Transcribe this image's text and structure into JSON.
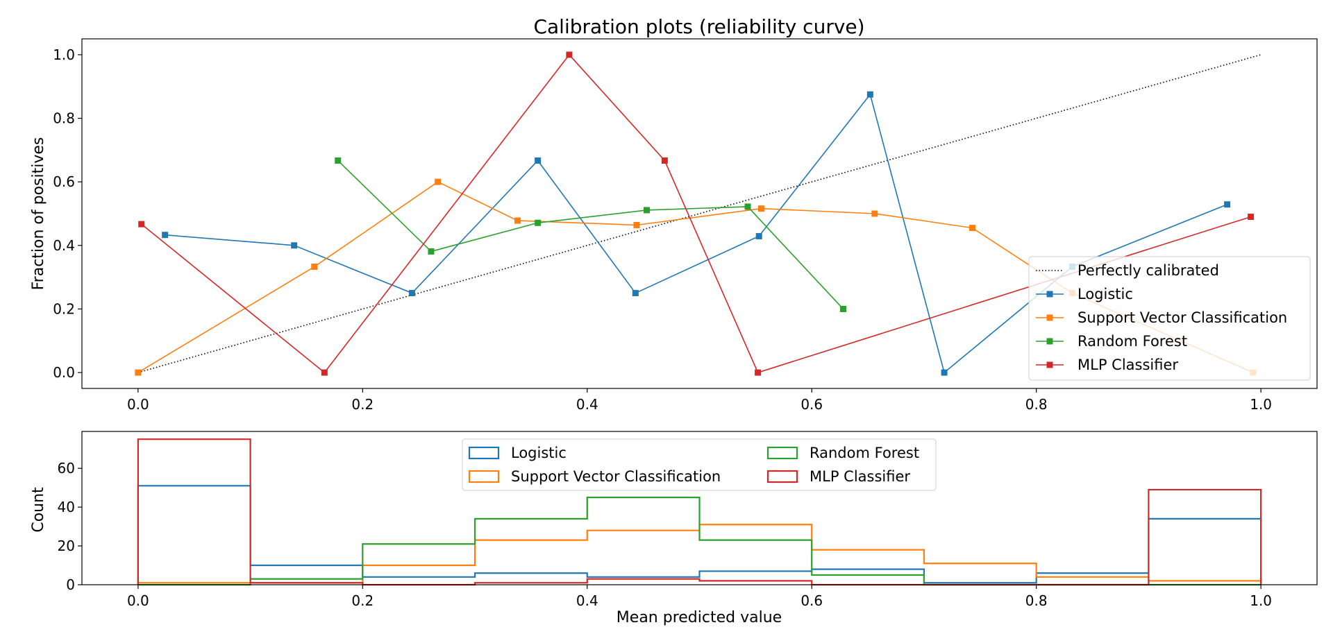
{
  "chart_data": [
    {
      "type": "line",
      "title": "Calibration plots  (reliability curve)",
      "xlabel": "",
      "ylabel": "Fraction of positives",
      "xlim": [
        -0.05,
        1.05
      ],
      "ylim": [
        -0.05,
        1.05
      ],
      "xticks": [
        0.0,
        0.2,
        0.4,
        0.6,
        0.8,
        1.0
      ],
      "xtick_labels": [
        "0.0",
        "0.2",
        "0.4",
        "0.6",
        "0.8",
        "1.0"
      ],
      "yticks": [
        0.0,
        0.2,
        0.4,
        0.6,
        0.8,
        1.0
      ],
      "ytick_labels": [
        "0.0",
        "0.2",
        "0.4",
        "0.6",
        "0.8",
        "1.0"
      ],
      "grid": false,
      "legend": "lower-right",
      "reference": {
        "name": "Perfectly calibrated",
        "x": [
          0,
          1
        ],
        "y": [
          0,
          1
        ],
        "style": "dotted",
        "color": "#000000"
      },
      "series": [
        {
          "name": "Logistic",
          "color": "#1f77b4",
          "x": [
            0.024,
            0.139,
            0.244,
            0.356,
            0.443,
            0.553,
            0.652,
            0.718,
            0.832,
            0.97
          ],
          "y": [
            0.433,
            0.4,
            0.25,
            0.667,
            0.25,
            0.429,
            0.875,
            0.0,
            0.333,
            0.529
          ]
        },
        {
          "name": "Support Vector Classification",
          "color": "#ff7f0e",
          "x": [
            0.0,
            0.157,
            0.267,
            0.338,
            0.444,
            0.555,
            0.656,
            0.743,
            0.832,
            0.993
          ],
          "y": [
            0.0,
            0.333,
            0.6,
            0.478,
            0.464,
            0.516,
            0.5,
            0.455,
            0.25,
            0.0
          ]
        },
        {
          "name": "Random Forest",
          "color": "#2ca02c",
          "x": [
            0.178,
            0.261,
            0.356,
            0.453,
            0.543,
            0.628
          ],
          "y": [
            0.667,
            0.381,
            0.471,
            0.511,
            0.522,
            0.2
          ]
        },
        {
          "name": "MLP Classifier",
          "color": "#d62728",
          "x": [
            0.003,
            0.166,
            0.384,
            0.469,
            0.552,
            0.991
          ],
          "y": [
            0.467,
            0.0,
            1.0,
            0.667,
            0.0,
            0.49
          ]
        }
      ]
    },
    {
      "type": "bar",
      "histtype": "step",
      "title": "",
      "xlabel": "Mean predicted value",
      "ylabel": "Count",
      "xlim": [
        -0.05,
        1.05
      ],
      "ylim": [
        0,
        79
      ],
      "xticks": [
        0.0,
        0.2,
        0.4,
        0.6,
        0.8,
        1.0
      ],
      "xtick_labels": [
        "0.0",
        "0.2",
        "0.4",
        "0.6",
        "0.8",
        "1.0"
      ],
      "yticks": [
        0,
        20,
        40,
        60
      ],
      "ytick_labels": [
        "0",
        "20",
        "40",
        "60"
      ],
      "grid": false,
      "legend": "upper-center",
      "legend_columns": 2,
      "bin_edges": [
        0.0,
        0.1,
        0.2,
        0.3,
        0.4,
        0.5,
        0.6,
        0.7,
        0.8,
        0.9,
        1.0
      ],
      "series": [
        {
          "name": "Logistic",
          "color": "#1f77b4",
          "values": [
            51,
            10,
            4,
            6,
            4,
            7,
            8,
            1,
            6,
            34
          ]
        },
        {
          "name": "Support Vector Classification",
          "color": "#ff7f0e",
          "values": [
            1,
            1,
            10,
            23,
            28,
            31,
            18,
            11,
            4,
            2
          ]
        },
        {
          "name": "Random Forest",
          "color": "#2ca02c",
          "values": [
            0,
            3,
            21,
            34,
            45,
            23,
            5,
            0,
            0,
            0
          ]
        },
        {
          "name": "MLP Classifier",
          "color": "#d62728",
          "values": [
            75,
            1,
            0,
            1,
            3,
            2,
            0,
            0,
            0,
            49
          ]
        }
      ]
    }
  ]
}
